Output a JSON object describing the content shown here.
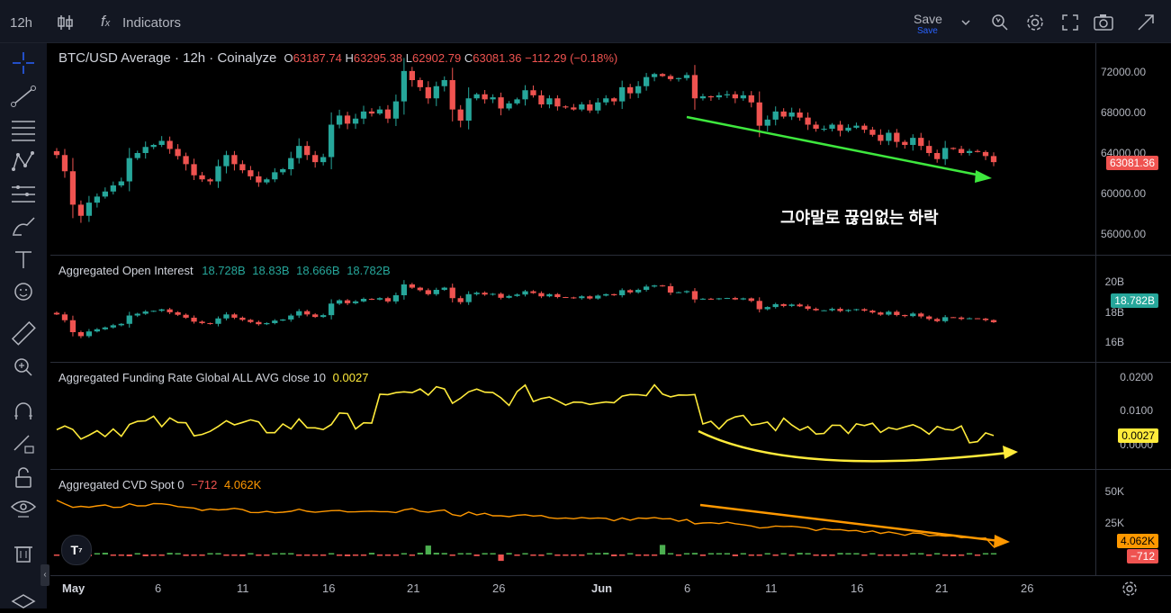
{
  "toolbar": {
    "interval": "12h",
    "indicators_label": "Indicators",
    "save_label": "Save",
    "save_sub": "Save"
  },
  "main_pane": {
    "symbol": "BTC/USD Average · 12h · Coinalyze",
    "o_label": "O",
    "o_value": "63187.74",
    "h_label": "H",
    "h_value": "63295.38",
    "l_label": "L",
    "l_value": "62902.79",
    "c_label": "C",
    "c_value": "63081.36",
    "change": "−112.29 (−0.18%)",
    "axis_ticks": [
      "72000.00",
      "68000.00",
      "64000.00",
      "60000.00",
      "56000.00"
    ],
    "last_price": "63081.36",
    "annotation": "그야말로 끊임없는 하락",
    "colors": {
      "up": "#26a69a",
      "down": "#ef5350",
      "arrow": "#3ee83e"
    }
  },
  "oi_pane": {
    "title": "Aggregated Open Interest",
    "values": [
      "18.728B",
      "18.83B",
      "18.666B",
      "18.782B"
    ],
    "axis_ticks": [
      "20B",
      "18B",
      "16B"
    ],
    "last_value": "18.782B"
  },
  "funding_pane": {
    "title": "Aggregated Funding Rate Global ALL AVG close 10",
    "value": "0.0027",
    "axis_ticks": [
      "0.0200",
      "0.0100",
      "0.0000"
    ],
    "last_value": "0.0027",
    "colors": {
      "line": "#ffeb3b",
      "negative": "#29b6f6"
    }
  },
  "cvd_pane": {
    "title": "Aggregated CVD Spot 0",
    "value1": "−712",
    "value2": "4.062K",
    "axis_ticks": [
      "50K",
      "25K"
    ],
    "tag1": "4.062K",
    "tag2": "−712",
    "colors": {
      "line": "#ff9800",
      "arrow": "#ff9800"
    }
  },
  "time_axis": [
    "May",
    "6",
    "11",
    "16",
    "21",
    "26",
    "Jun",
    "6",
    "11",
    "16",
    "21",
    "26"
  ],
  "chart_data": {
    "type": "candlestick",
    "title": "BTC/USD Average · 12h · Coinalyze",
    "ylim": [
      54500,
      73500
    ],
    "close": [
      63800,
      62200,
      58900,
      57800,
      59100,
      59700,
      60200,
      60800,
      61200,
      63500,
      64000,
      64600,
      64800,
      65200,
      64400,
      63700,
      62900,
      61800,
      61400,
      61200,
      62700,
      63800,
      62900,
      62300,
      61700,
      61100,
      61400,
      62100,
      62400,
      63500,
      64700,
      63800,
      63100,
      63600,
      66800,
      67700,
      66900,
      67400,
      68100,
      67900,
      68300,
      67400,
      69100,
      72100,
      71200,
      70500,
      69400,
      70600,
      71200,
      68300,
      67200,
      69400,
      69800,
      69300,
      69500,
      68400,
      68900,
      69300,
      70200,
      69700,
      68800,
      69400,
      68600,
      68500,
      68300,
      68800,
      68200,
      69000,
      69400,
      69100,
      70500,
      69900,
      70600,
      71500,
      71800,
      71600,
      71300,
      71400,
      71700,
      69400,
      69600,
      69500,
      69700,
      69800,
      69400,
      69700,
      69000,
      66700,
      67300,
      68100,
      67600,
      68000,
      67500,
      66800,
      66400,
      66400,
      66800,
      66200,
      66500,
      66700,
      66300,
      65800,
      65200,
      66000,
      65100,
      64800,
      65500,
      64700,
      64000,
      63400,
      64500,
      64400,
      64000,
      64200,
      64100,
      63700,
      63100
    ],
    "oi_ylim": [
      15000000000,
      21000000000
    ],
    "funding_ylim": [
      -0.0015,
      0.0215
    ],
    "cvd_ylim": [
      -5000,
      60000
    ]
  }
}
